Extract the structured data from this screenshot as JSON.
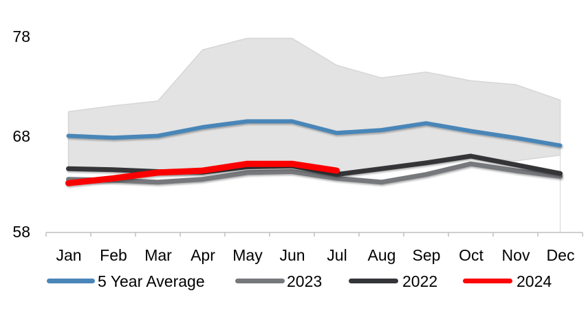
{
  "chart_data": {
    "type": "line",
    "categories": [
      "Jan",
      "Feb",
      "Mar",
      "Apr",
      "May",
      "Jun",
      "Jul",
      "Aug",
      "Sep",
      "Oct",
      "Nov",
      "Dec"
    ],
    "y_axis": {
      "ticks": [
        78,
        68,
        58
      ],
      "min": 58,
      "max": 79,
      "axis_color": "#bfbfbf",
      "grid": false
    },
    "legend_position": "bottom",
    "band": {
      "name": "5-year min-max range",
      "fill": "#e3e3e3",
      "edge": "#d6d6d6",
      "max": [
        70.5,
        71.1,
        71.6,
        76.9,
        78.1,
        78.1,
        75.3,
        74.0,
        74.6,
        73.7,
        73.3,
        71.7
      ],
      "min": [
        64.5,
        64.4,
        64.2,
        64.1,
        64.9,
        64.9,
        63.9,
        64.7,
        65.2,
        65.9,
        65.4,
        66.0
      ]
    },
    "series": [
      {
        "name": "5 Year Average",
        "color": "#4a86b8",
        "width": 6,
        "values": [
          68.0,
          67.8,
          68.0,
          68.9,
          69.5,
          69.5,
          68.3,
          68.6,
          69.3,
          68.5,
          67.8,
          67.0
        ]
      },
      {
        "name": "2023",
        "color": "#76787b",
        "width": 7,
        "values": [
          63.5,
          63.4,
          63.2,
          63.5,
          64.2,
          64.3,
          63.6,
          63.2,
          64.0,
          65.1,
          64.4,
          63.8
        ]
      },
      {
        "name": "2022",
        "color": "#343539",
        "width": 7,
        "values": [
          64.6,
          64.5,
          64.3,
          64.25,
          64.8,
          64.9,
          64.0,
          64.6,
          65.2,
          65.9,
          65.0,
          64.1
        ]
      },
      {
        "name": "2024",
        "color": "#fb0505",
        "width": 9,
        "values": [
          63.1,
          63.6,
          64.2,
          64.4,
          65.1,
          65.1,
          64.4
        ]
      }
    ]
  }
}
